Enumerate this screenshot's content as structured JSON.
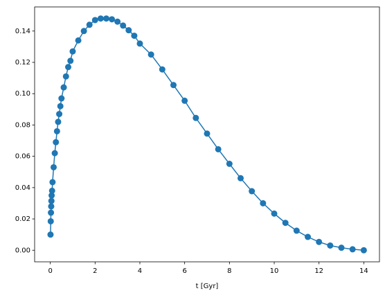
{
  "chart_data": {
    "type": "line",
    "xlabel": "t [Gyr]",
    "color": "#1f77b4",
    "x": [
      0.01,
      0.02,
      0.03,
      0.04,
      0.05,
      0.06,
      0.08,
      0.1,
      0.15,
      0.2,
      0.25,
      0.3,
      0.35,
      0.4,
      0.45,
      0.5,
      0.6,
      0.7,
      0.8,
      0.9,
      1.0,
      1.25,
      1.5,
      1.75,
      2.0,
      2.25,
      2.5,
      2.75,
      3.0,
      3.25,
      3.5,
      3.75,
      4.0,
      4.5,
      5.0,
      5.5,
      6.0,
      6.5,
      7.0,
      7.5,
      8.0,
      8.5,
      9.0,
      9.5,
      10.0,
      10.5,
      11.0,
      11.5,
      12.0,
      12.5,
      13.0,
      13.5,
      14.0
    ],
    "values": [
      0.01,
      0.0185,
      0.024,
      0.028,
      0.0315,
      0.035,
      0.038,
      0.0435,
      0.053,
      0.062,
      0.069,
      0.076,
      0.082,
      0.087,
      0.092,
      0.097,
      0.104,
      0.111,
      0.117,
      0.121,
      0.127,
      0.134,
      0.14,
      0.144,
      0.147,
      0.148,
      0.148,
      0.1475,
      0.146,
      0.1435,
      0.1405,
      0.137,
      0.132,
      0.125,
      0.1155,
      0.1055,
      0.0955,
      0.0845,
      0.0745,
      0.0645,
      0.0552,
      0.046,
      0.0377,
      0.03,
      0.0234,
      0.0175,
      0.0125,
      0.0085,
      0.0053,
      0.003,
      0.0016,
      0.0006,
      0.0
    ],
    "xlim": [
      -0.7,
      14.7
    ],
    "xticks": [
      0,
      2,
      4,
      6,
      8,
      10,
      12,
      14
    ],
    "ylim": [
      -0.0074,
      0.1554
    ],
    "yticks": [
      {
        "value": 0,
        "label": "0.00"
      },
      {
        "value": 0.02,
        "label": "0.02"
      },
      {
        "value": 0.04,
        "label": "0.04"
      },
      {
        "value": 0.06,
        "label": "0.06"
      },
      {
        "value": 0.08,
        "label": "0.08"
      },
      {
        "value": 0.1,
        "label": "0.10"
      },
      {
        "value": 0.12,
        "label": "0.12"
      },
      {
        "value": 0.14,
        "label": "0.14"
      }
    ]
  }
}
